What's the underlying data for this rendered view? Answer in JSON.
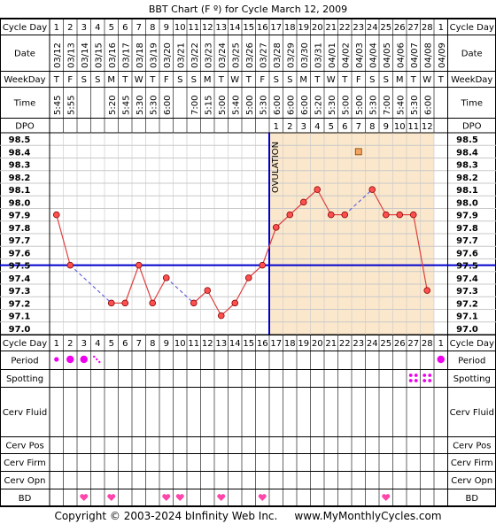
{
  "title": "BBT Chart (F º) for Cycle March 12, 2009",
  "footer": "Copyright © 2003-2024 bInfinity Web Inc.     www.MyMonthlyCycles.com",
  "ovulation_label": "OVULATION",
  "row_labels": {
    "cycle_day": "Cycle Day",
    "date": "Date",
    "weekday": "WeekDay",
    "time": "Time",
    "dpo": "DPO",
    "period": "Period",
    "spotting": "Spotting",
    "cerv_fluid": "Cerv Fluid",
    "cerv_pos": "Cerv Pos",
    "cerv_firm": "Cerv Firm",
    "cerv_opn": "Cerv Opn",
    "bd": "BD"
  },
  "colors": {
    "line": "#e04040",
    "point_fill": "#ff5050",
    "coverline": "#0000cc",
    "ovulation_line": "#0000cc",
    "luteal_fill": "#fbe8cc",
    "grid": "#c8c8c8",
    "period": "#ee00ee",
    "spotting": "#ee00ee",
    "bd": "#ff44aa",
    "marker_square": "#f4a460"
  },
  "days": [
    1,
    2,
    3,
    4,
    5,
    6,
    7,
    8,
    9,
    10,
    11,
    12,
    13,
    14,
    15,
    16,
    17,
    18,
    19,
    20,
    21,
    22,
    23,
    24,
    25,
    26,
    27,
    28
  ],
  "dates": [
    "03/12",
    "03/13",
    "03/14",
    "03/15",
    "03/16",
    "03/17",
    "03/18",
    "03/19",
    "03/20",
    "03/21",
    "03/22",
    "03/23",
    "03/24",
    "03/25",
    "03/26",
    "03/27",
    "03/28",
    "03/29",
    "03/30",
    "03/31",
    "04/01",
    "04/02",
    "04/03",
    "04/04",
    "04/05",
    "04/06",
    "04/07",
    "04/08",
    "04/09"
  ],
  "weekdays": [
    "T",
    "F",
    "S",
    "S",
    "M",
    "T",
    "W",
    "T",
    "F",
    "S",
    "S",
    "M",
    "T",
    "W",
    "T",
    "F",
    "S",
    "S",
    "M",
    "T",
    "W",
    "T",
    "F",
    "S",
    "S",
    "M",
    "T",
    "W",
    "T"
  ],
  "times": [
    "5:45",
    "5:55",
    "",
    "",
    "5:20",
    "5:45",
    "5:30",
    "5:30",
    "6:00",
    "",
    "7:00",
    "5:15",
    "5:00",
    "5:40",
    "5:00",
    "5:30",
    "6:00",
    "6:00",
    "6:00",
    "5:20",
    "5:30",
    "5:00",
    "5:00",
    "5:30",
    "7:00",
    "5:40",
    "5:30",
    "6:00",
    ""
  ],
  "dpo": [
    "",
    "",
    "",
    "",
    "",
    "",
    "",
    "",
    "",
    "",
    "",
    "",
    "",
    "",
    "",
    "",
    "1",
    "2",
    "3",
    "4",
    "5",
    "6",
    "7",
    "8",
    "9",
    "10",
    "11",
    "12"
  ],
  "period_marks": [
    "small",
    "medium",
    "medium",
    "light",
    "",
    "",
    "",
    "",
    "",
    "",
    "",
    "",
    "",
    "",
    "",
    "",
    "",
    "",
    "",
    "",
    "",
    "",
    "",
    "",
    "",
    "",
    "",
    "",
    "large"
  ],
  "spotting_marks": [
    27,
    28
  ],
  "bd_days": [
    3,
    5,
    9,
    10,
    13,
    16,
    25
  ],
  "chart_data": {
    "type": "line",
    "x": [
      1,
      2,
      3,
      4,
      5,
      6,
      7,
      8,
      9,
      10,
      11,
      12,
      13,
      14,
      15,
      16,
      17,
      18,
      19,
      20,
      21,
      22,
      23,
      24,
      25,
      26,
      27,
      28
    ],
    "y_labels": [
      "98.5",
      "98.4",
      "98.3",
      "98.2",
      "98.1",
      "98.0",
      "97.9",
      "97.8",
      "97.7",
      "97.6",
      "97.5",
      "97.4",
      "97.3",
      "97.2",
      "97.1",
      "97.0"
    ],
    "ylim": [
      97.0,
      98.5
    ],
    "series": [
      {
        "values": [
          97.9,
          97.5,
          null,
          null,
          97.2,
          97.2,
          97.5,
          97.2,
          97.4,
          null,
          97.2,
          97.3,
          97.1,
          97.2,
          97.4,
          97.5,
          97.8,
          97.9,
          98.0,
          98.1,
          97.9,
          97.9,
          null,
          98.1,
          97.9,
          97.9,
          97.9,
          97.3
        ]
      }
    ],
    "discarded_temp": {
      "day": 23,
      "value": 98.4
    },
    "coverline": 97.5,
    "ovulation_day": 16
  }
}
